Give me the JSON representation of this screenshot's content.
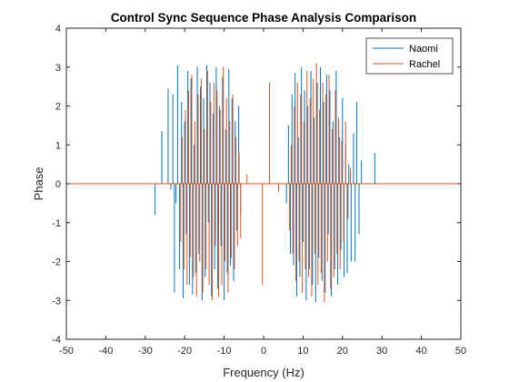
{
  "chart_data": {
    "type": "line",
    "title": "Control Sync Sequence Phase Analysis Comparison",
    "xlabel": "Frequency (Hz)",
    "ylabel": "Phase",
    "xlim": [
      -50,
      50
    ],
    "ylim": [
      -4,
      4
    ],
    "xticks": [
      -50,
      -40,
      -30,
      -20,
      -10,
      0,
      10,
      20,
      30,
      40,
      50
    ],
    "yticks": [
      -4,
      -3,
      -2,
      -1,
      0,
      1,
      2,
      3,
      4
    ],
    "legend_position": "top-right",
    "series": [
      {
        "name": "Naomi",
        "color": "#0072BD",
        "points": [
          [
            -27.5,
            -0.8
          ],
          [
            -25.8,
            1.35
          ],
          [
            -24.2,
            2.45
          ],
          [
            -23.5,
            -0.15
          ],
          [
            -23.0,
            2.3
          ],
          [
            -22.6,
            -2.8
          ],
          [
            -22.2,
            -0.5
          ],
          [
            -21.8,
            3.05
          ],
          [
            -21.3,
            -2.2
          ],
          [
            -20.8,
            2.1
          ],
          [
            -20.4,
            -2.95
          ],
          [
            -20.0,
            1.6
          ],
          [
            -19.6,
            -1.3
          ],
          [
            -19.2,
            2.9
          ],
          [
            -18.8,
            -2.6
          ],
          [
            -18.4,
            2.7
          ],
          [
            -18.0,
            -2.85
          ],
          [
            -17.6,
            1.0
          ],
          [
            -17.2,
            -2.3
          ],
          [
            -16.8,
            3.0
          ],
          [
            -16.4,
            -1.8
          ],
          [
            -16.0,
            2.5
          ],
          [
            -15.6,
            -3.0
          ],
          [
            -15.2,
            2.2
          ],
          [
            -14.8,
            -2.4
          ],
          [
            -14.4,
            3.05
          ],
          [
            -14.0,
            -1.0
          ],
          [
            -13.6,
            2.6
          ],
          [
            -13.2,
            -2.9
          ],
          [
            -12.8,
            1.8
          ],
          [
            -12.4,
            -2.2
          ],
          [
            -12.0,
            3.0
          ],
          [
            -11.6,
            -2.7
          ],
          [
            -11.2,
            2.0
          ],
          [
            -10.8,
            -1.6
          ],
          [
            -10.4,
            2.75
          ],
          [
            -10.0,
            -3.0
          ],
          [
            -9.6,
            1.4
          ],
          [
            -9.2,
            -2.3
          ],
          [
            -8.8,
            2.95
          ],
          [
            -8.4,
            -2.1
          ],
          [
            -8.0,
            2.2
          ],
          [
            -7.6,
            -2.5
          ],
          [
            -7.2,
            1.6
          ],
          [
            -6.8,
            -1.2
          ],
          [
            -6.3,
            2.0
          ],
          [
            -5.8,
            -0.8
          ],
          [
            5.8,
            -0.5
          ],
          [
            6.3,
            1.5
          ],
          [
            6.8,
            -1.8
          ],
          [
            7.2,
            2.3
          ],
          [
            7.6,
            -2.1
          ],
          [
            8.0,
            2.85
          ],
          [
            8.4,
            -2.9
          ],
          [
            8.8,
            1.2
          ],
          [
            9.2,
            -2.4
          ],
          [
            9.6,
            3.0
          ],
          [
            10.0,
            -1.5
          ],
          [
            10.4,
            2.4
          ],
          [
            10.8,
            -3.0
          ],
          [
            11.2,
            2.0
          ],
          [
            11.6,
            -2.2
          ],
          [
            12.0,
            2.9
          ],
          [
            12.4,
            -2.6
          ],
          [
            12.8,
            1.7
          ],
          [
            13.2,
            -3.05
          ],
          [
            13.6,
            2.6
          ],
          [
            14.0,
            -1.9
          ],
          [
            14.4,
            3.0
          ],
          [
            14.8,
            -2.5
          ],
          [
            15.2,
            2.1
          ],
          [
            15.6,
            -2.8
          ],
          [
            16.0,
            2.8
          ],
          [
            16.4,
            -1.3
          ],
          [
            16.8,
            2.4
          ],
          [
            17.2,
            -2.9
          ],
          [
            17.6,
            1.6
          ],
          [
            18.0,
            -2.2
          ],
          [
            18.4,
            2.9
          ],
          [
            18.8,
            -2.6
          ],
          [
            19.2,
            1.2
          ],
          [
            19.6,
            -1.7
          ],
          [
            20.0,
            2.2
          ],
          [
            20.4,
            -2.4
          ],
          [
            20.8,
            1.0
          ],
          [
            21.2,
            -2.3
          ],
          [
            21.6,
            0.5
          ],
          [
            22.2,
            -2.0
          ],
          [
            22.8,
            1.3
          ],
          [
            23.2,
            -2.0
          ],
          [
            23.6,
            2.1
          ],
          [
            24.2,
            -1.3
          ],
          [
            24.8,
            0.6
          ],
          [
            28.2,
            0.8
          ]
        ]
      },
      {
        "name": "Rachel",
        "color": "#D95319",
        "points": [
          [
            -21.0,
            -1.5
          ],
          [
            -20.6,
            1.2
          ],
          [
            -20.2,
            -2.2
          ],
          [
            -19.8,
            1.9
          ],
          [
            -19.4,
            -2.6
          ],
          [
            -19.0,
            2.4
          ],
          [
            -18.6,
            -1.9
          ],
          [
            -18.2,
            2.8
          ],
          [
            -17.8,
            -2.4
          ],
          [
            -17.4,
            1.6
          ],
          [
            -17.0,
            -2.9
          ],
          [
            -16.6,
            2.3
          ],
          [
            -16.2,
            -2.0
          ],
          [
            -15.8,
            2.7
          ],
          [
            -15.4,
            -2.8
          ],
          [
            -15.0,
            1.4
          ],
          [
            -14.6,
            -2.2
          ],
          [
            -14.2,
            2.9
          ],
          [
            -13.8,
            -2.6
          ],
          [
            -13.4,
            2.1
          ],
          [
            -13.0,
            -3.0
          ],
          [
            -12.6,
            2.6
          ],
          [
            -12.2,
            -1.6
          ],
          [
            -11.8,
            2.4
          ],
          [
            -11.4,
            -2.9
          ],
          [
            -11.0,
            1.9
          ],
          [
            -10.6,
            -2.6
          ],
          [
            -10.2,
            3.0
          ],
          [
            -9.8,
            -2.0
          ],
          [
            -9.4,
            2.2
          ],
          [
            -9.0,
            -2.8
          ],
          [
            -8.6,
            1.6
          ],
          [
            -8.2,
            -1.9
          ],
          [
            -7.8,
            2.3
          ],
          [
            -7.4,
            -2.2
          ],
          [
            -7.0,
            1.2
          ],
          [
            -6.6,
            -1.6
          ],
          [
            -6.2,
            0.8
          ],
          [
            -5.8,
            -1.4
          ],
          [
            -4.2,
            0.25
          ],
          [
            -0.3,
            -2.6
          ],
          [
            1.5,
            2.6
          ],
          [
            3.8,
            -0.2
          ],
          [
            6.6,
            -1.2
          ],
          [
            7.0,
            1.0
          ],
          [
            7.4,
            -1.8
          ],
          [
            7.8,
            2.0
          ],
          [
            8.2,
            -2.5
          ],
          [
            8.6,
            2.6
          ],
          [
            9.0,
            -2.0
          ],
          [
            9.4,
            2.3
          ],
          [
            9.8,
            -2.8
          ],
          [
            10.2,
            1.6
          ],
          [
            10.6,
            -2.2
          ],
          [
            11.0,
            2.9
          ],
          [
            11.4,
            -2.4
          ],
          [
            11.8,
            2.2
          ],
          [
            12.2,
            -2.9
          ],
          [
            12.6,
            2.7
          ],
          [
            13.0,
            -1.8
          ],
          [
            13.4,
            3.1
          ],
          [
            13.8,
            -2.6
          ],
          [
            14.2,
            1.9
          ],
          [
            14.6,
            -2.3
          ],
          [
            15.0,
            2.6
          ],
          [
            15.4,
            -3.05
          ],
          [
            15.8,
            2.3
          ],
          [
            16.2,
            -2.0
          ],
          [
            16.6,
            2.8
          ],
          [
            17.0,
            -2.7
          ],
          [
            17.4,
            1.4
          ],
          [
            17.8,
            -2.4
          ],
          [
            18.2,
            2.4
          ],
          [
            18.6,
            -1.8
          ],
          [
            19.0,
            1.7
          ],
          [
            19.4,
            -2.2
          ],
          [
            19.8,
            1.1
          ],
          [
            20.3,
            -1.5
          ],
          [
            20.8,
            1.6
          ],
          [
            21.4,
            -0.9
          ],
          [
            22.0,
            0.4
          ]
        ]
      }
    ]
  }
}
